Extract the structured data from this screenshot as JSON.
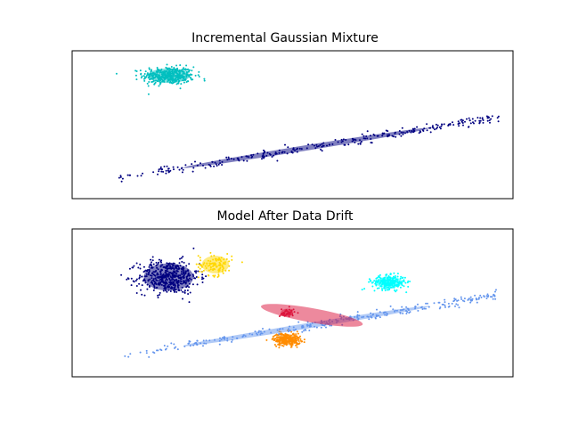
{
  "chart_data": [
    {
      "type": "scatter",
      "title": "Incremental Gaussian Mixture",
      "xlabel": "",
      "ylabel": "",
      "xlim": [
        -10,
        6
      ],
      "ylim": [
        -5,
        3.3
      ],
      "axes_visible": false,
      "grid": false,
      "legend": "none",
      "series": [
        {
          "color": "#00BFBF",
          "cluster": "blob",
          "count": 420,
          "center": [
            -6.5,
            1.9
          ],
          "spread": [
            0.85,
            0.45
          ],
          "ellipse_color": "#00BFBF"
        },
        {
          "color": "#000080",
          "cluster": "elongated",
          "count": 300,
          "from": [
            -8.5,
            -3.9
          ],
          "to": [
            5.5,
            -0.4
          ],
          "ellipse_color": "#000080"
        }
      ]
    },
    {
      "type": "scatter",
      "title": "Model After Data Drift",
      "xlabel": "",
      "ylabel": "",
      "xlim": [
        -10,
        6
      ],
      "ylim": [
        -5,
        3.3
      ],
      "axes_visible": false,
      "grid": false,
      "legend": "none",
      "series": [
        {
          "color": "#000080",
          "cluster": "blob",
          "count": 500,
          "center": [
            -6.5,
            0.6
          ],
          "spread": [
            1.0,
            0.85
          ],
          "ellipse_color": "#000080"
        },
        {
          "color": "#FFD700",
          "cluster": "blob",
          "count": 110,
          "center": [
            -4.8,
            1.3
          ],
          "spread": [
            0.55,
            0.55
          ],
          "ellipse_color": "#FFD700"
        },
        {
          "color": "#00FFFF",
          "cluster": "blob",
          "count": 260,
          "center": [
            1.5,
            0.3
          ],
          "spread": [
            0.55,
            0.35
          ],
          "ellipse_color": "#00FFFF"
        },
        {
          "color": "#DC143C",
          "cluster": "blob",
          "count": 40,
          "center": [
            -2.2,
            -1.4
          ],
          "spread": [
            0.25,
            0.25
          ],
          "ellipse_color": "#DC143C"
        },
        {
          "color": "#FF8C00",
          "cluster": "blob",
          "count": 260,
          "center": [
            -2.2,
            -2.9
          ],
          "spread": [
            0.45,
            0.32
          ],
          "ellipse_color": "#FF8C00"
        },
        {
          "color": "#6495ED",
          "cluster": "elongated",
          "count": 300,
          "from": [
            -8.5,
            -3.9
          ],
          "to": [
            5.5,
            -0.4
          ],
          "ellipse_color": "#6495ED"
        }
      ]
    }
  ]
}
